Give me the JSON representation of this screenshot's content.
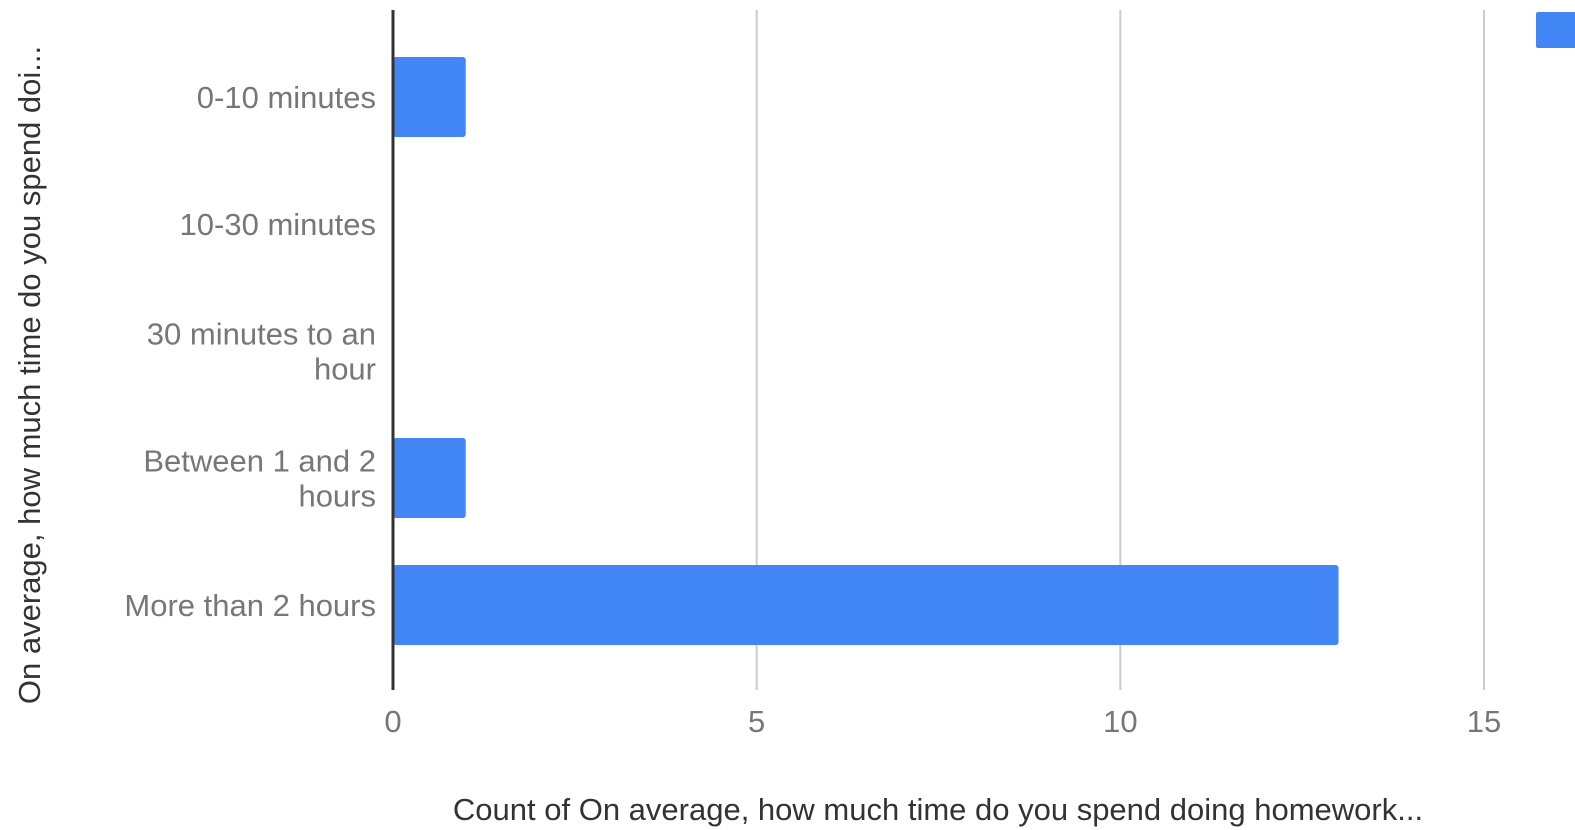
{
  "chart_data": {
    "type": "bar",
    "orientation": "horizontal",
    "categories": [
      "0-10 minutes",
      "10-30 minutes",
      "30 minutes to an hour",
      "Between 1 and 2 hours",
      "More than 2 hours"
    ],
    "series": [
      {
        "values": [
          1,
          0,
          0,
          1,
          13
        ],
        "color": "#4285f4"
      }
    ],
    "xlim": [
      0,
      15
    ],
    "xticks": [
      "0",
      "5",
      "10",
      "15"
    ],
    "xlabel": "Count of On average, how much time do you spend doing homework...",
    "ylabel": "On average, how much time do you spend doi...",
    "grid": true,
    "legend": "top-right",
    "colors": {
      "bar": "#4285f4",
      "grid": "#cccccc",
      "axis": "#333333",
      "tick_text": "#777777"
    }
  }
}
